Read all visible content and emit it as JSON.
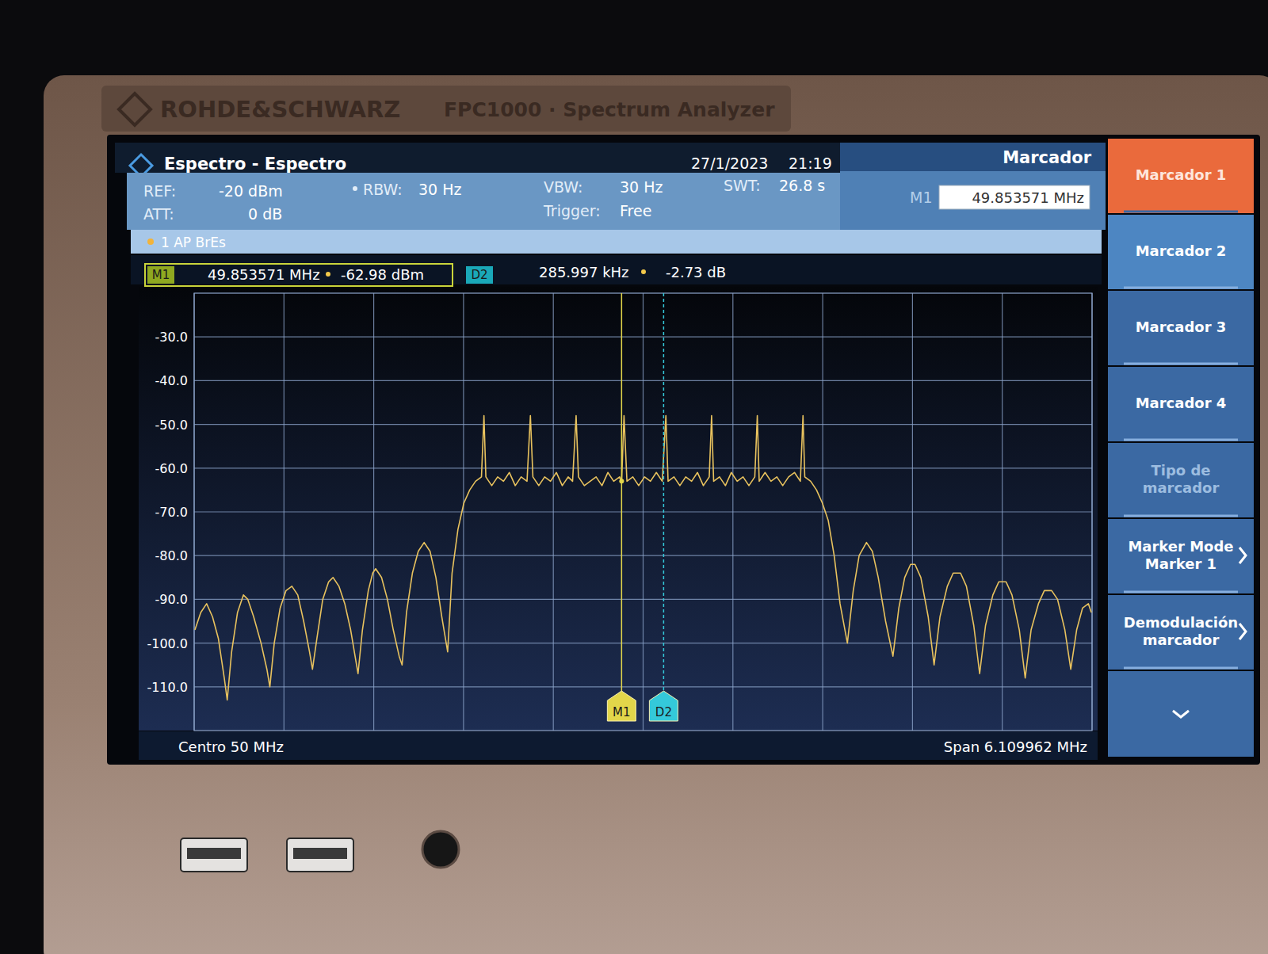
{
  "device": {
    "brand": "ROHDE&SCHWARZ",
    "model": "FPC1000 · Spectrum Analyzer"
  },
  "header": {
    "title": "Espectro - Espectro",
    "date": "27/1/2023",
    "time": "21:19",
    "panel": "Marcador",
    "ref_label": "REF:",
    "ref": "-20 dBm",
    "att_label": "ATT:",
    "att": "0 dB",
    "rbw_label": "RBW:",
    "rbw": "30 Hz",
    "vbw_label": "VBW:",
    "vbw": "30 Hz",
    "trigger_label": "Trigger:",
    "trigger": "Free",
    "swt_label": "SWT:",
    "swt": "26.8 s"
  },
  "footer": {
    "center": "Centro 50 MHz",
    "span": "Span 6.109962 MHz"
  },
  "softkeys": [
    "Marcador 1",
    "Marcador 2",
    "Marcador 3",
    "Marcador 4",
    "Tipo de marcador",
    "Marker Mode Marker 1",
    "Demodulación marcador"
  ],
  "chart_data": {
    "type": "line",
    "x": [
      46.95,
      46.99,
      47.03,
      47.07,
      47.11,
      47.15,
      47.17,
      47.2,
      47.24,
      47.28,
      47.31,
      47.35,
      47.4,
      47.44,
      47.46,
      47.49,
      47.53,
      47.57,
      47.61,
      47.65,
      47.69,
      47.73,
      47.75,
      47.78,
      47.82,
      47.86,
      47.89,
      47.93,
      47.97,
      48.01,
      48.04,
      48.06,
      48.09,
      48.13,
      48.16,
      48.18,
      48.22,
      48.26,
      48.3,
      48.34,
      48.36,
      48.39,
      48.43,
      48.47,
      48.51,
      48.55,
      48.59,
      48.63,
      48.67,
      48.7,
      48.74,
      48.78,
      48.82,
      48.86,
      48.9,
      48.917,
      48.93,
      48.97,
      49.01,
      49.05,
      49.09,
      49.13,
      49.17,
      49.21,
      49.233,
      49.25,
      49.29,
      49.33,
      49.37,
      49.41,
      49.45,
      49.49,
      49.52,
      49.544,
      49.56,
      49.6,
      49.64,
      49.68,
      49.72,
      49.76,
      49.8,
      49.84,
      49.854,
      49.87,
      49.89,
      49.93,
      49.97,
      50.01,
      50.05,
      50.09,
      50.13,
      50.155,
      50.17,
      50.21,
      50.25,
      50.29,
      50.33,
      50.37,
      50.41,
      50.45,
      50.466,
      50.48,
      50.52,
      50.56,
      50.6,
      50.64,
      50.68,
      50.72,
      50.76,
      50.777,
      50.79,
      50.83,
      50.87,
      50.91,
      50.95,
      50.99,
      51.03,
      51.07,
      51.088,
      51.1,
      51.14,
      51.18,
      51.22,
      51.26,
      51.3,
      51.34,
      51.39,
      51.43,
      51.47,
      51.52,
      51.56,
      51.6,
      51.65,
      51.7,
      51.74,
      51.78,
      51.82,
      51.85,
      51.89,
      51.94,
      51.98,
      52.02,
      52.07,
      52.11,
      52.16,
      52.2,
      52.25,
      52.29,
      52.33,
      52.38,
      52.42,
      52.47,
      52.51,
      52.56,
      52.6,
      52.64,
      52.69,
      52.73,
      52.78,
      52.82,
      52.87,
      52.91,
      52.95,
      52.99,
      53.03,
      53.05
    ],
    "series": [
      {
        "name": "1 AP BrEs",
        "color": "#e8c25e",
        "values": [
          -97,
          -93,
          -91,
          -94,
          -99,
          -108,
          -113,
          -102,
          -93,
          -89,
          -90,
          -94,
          -100,
          -106,
          -110,
          -100,
          -92,
          -88,
          -87,
          -89,
          -95,
          -102,
          -106,
          -99,
          -90,
          -86,
          -85,
          -87,
          -91,
          -97,
          -103,
          -107,
          -97,
          -88,
          -84,
          -83,
          -85,
          -90,
          -97,
          -103,
          -105,
          -93,
          -84,
          -79,
          -77,
          -79,
          -85,
          -94,
          -102,
          -84,
          -74,
          -68,
          -65,
          -63,
          -62,
          -48,
          -62,
          -64,
          -62,
          -63,
          -61,
          -64,
          -62,
          -63,
          -48,
          -62,
          -64,
          -62,
          -63,
          -61,
          -64,
          -62,
          -63,
          -48,
          -62,
          -64,
          -63,
          -62,
          -64,
          -61,
          -63,
          -62,
          -63,
          -48,
          -63,
          -62,
          -64,
          -62,
          -63,
          -61,
          -63,
          -48,
          -63,
          -62,
          -64,
          -62,
          -63,
          -61,
          -64,
          -62,
          -48,
          -63,
          -62,
          -64,
          -61,
          -63,
          -62,
          -64,
          -62,
          -48,
          -63,
          -61,
          -63,
          -62,
          -64,
          -62,
          -61,
          -63,
          -48,
          -62,
          -63,
          -65,
          -68,
          -72,
          -80,
          -91,
          -100,
          -88,
          -80,
          -77,
          -79,
          -85,
          -95,
          -103,
          -92,
          -85,
          -82,
          -82,
          -85,
          -94,
          -105,
          -94,
          -87,
          -84,
          -84,
          -87,
          -96,
          -107,
          -96,
          -89,
          -86,
          -86,
          -89,
          -97,
          -108,
          -97,
          -91,
          -88,
          -88,
          -90,
          -97,
          -106,
          -97,
          -92,
          -91,
          -93
        ]
      }
    ],
    "xlim": [
      46.945019,
      53.054981
    ],
    "xticks": [
      46.945019,
      47.556,
      48.167,
      48.778,
      49.389,
      50.0,
      50.611,
      51.222,
      51.833,
      52.444,
      53.054981
    ],
    "ylim": [
      -120,
      -20
    ],
    "yticks": [
      {
        "value": -30,
        "label": "-30.0"
      },
      {
        "value": -40,
        "label": "-40.0"
      },
      {
        "value": -50,
        "label": "-50.0"
      },
      {
        "value": -60,
        "label": "-60.0"
      },
      {
        "value": -70,
        "label": "-70.0"
      },
      {
        "value": -80,
        "label": "-80.0"
      },
      {
        "value": -90,
        "label": "-90.0"
      },
      {
        "value": -100,
        "label": "-100.0"
      },
      {
        "value": -110,
        "label": "-110.0"
      }
    ],
    "grid": true,
    "tick_labels": "y",
    "markers": [
      {
        "label": "M1",
        "x": 49.853571,
        "y": -62.98,
        "x_label": "49.853571 MHz",
        "y_label": "-62.98 dBm",
        "color": "#e2d64a"
      },
      {
        "label": "D2",
        "x": 50.139568,
        "x_label": "285.997 kHz",
        "y_label": "-2.73 dB",
        "color": "#34c9da"
      }
    ]
  }
}
